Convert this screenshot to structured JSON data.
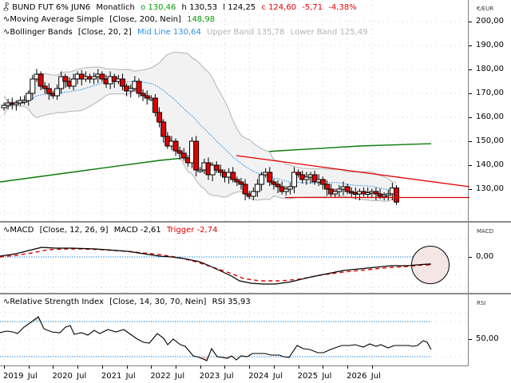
{
  "instrument": {
    "icon": "candlestick-icon",
    "name": "BUND FUT 6% JUN6",
    "interval": "Monatlich",
    "open_label": "o 130,46",
    "high_label": "h 130,53",
    "low_label": "l 124,25",
    "close_label": "c 124,60",
    "change_abs": "-5,71",
    "change_pct": "-4,38%"
  },
  "indicators": {
    "sma": {
      "icon": "indicator-wave-icon",
      "name": "Moving Average Simple",
      "params": "[Close, 200, Nein]",
      "value": "148,98"
    },
    "bollinger": {
      "icon": "indicator-wave-icon",
      "name": "Bollinger Bands",
      "params": "[Close, 20, 2]",
      "mid": "Mid Line 130,64",
      "upper": "Upper Band 135,78",
      "lower": "Lower Band 125,49"
    },
    "macd": {
      "icon": "indicator-wave-icon",
      "name": "MACD",
      "params": "[Close, 12, 26, 9]",
      "macd": "MACD -2,61",
      "trigger": "Trigger -2,74"
    },
    "rsi": {
      "icon": "indicator-wave-icon",
      "name": "Relative Strength Index",
      "params": "[Close, 14, 30, 70, Nein]",
      "value": "RSI 35,93"
    }
  },
  "axes": {
    "price_unit": "€/EUR",
    "price_ticks": [
      "200,00",
      "190,00",
      "180,00",
      "170,00",
      "160,00",
      "150,00",
      "140,00",
      "130,00"
    ],
    "macd_unit": "MACD",
    "macd_ticks": [
      "0,00"
    ],
    "rsi_unit": "RSI",
    "rsi_ticks": [
      "50,00"
    ],
    "x_ticks": [
      "2019",
      "Jul",
      "2020",
      "Jul",
      "2021",
      "Jul",
      "2022",
      "Jul",
      "2023",
      "Jul",
      "2024",
      "Jul",
      "2025",
      "Jul",
      "2026",
      "Jul"
    ]
  },
  "colors": {
    "up_candle": "#ffffff",
    "down_candle": "#e00000",
    "sma": "#0a7a0a",
    "bollinger_mid": "#1e88e5",
    "bollinger_band": "#bdbdbd",
    "bollinger_fill": "#f2f2f2",
    "trendline": "#e00000",
    "macd": "#000000",
    "trigger": "#e00000",
    "rsi": "#000000",
    "level_line": "#1e88e5",
    "circle_fill": "#f5e6e6",
    "open_value": "#0a9a0a",
    "close_value": "#e00000",
    "mid_line_text": "#2e90e0",
    "band_text": "#b4b4b4"
  },
  "chart_data": [
    {
      "type": "candlestick",
      "title": "BUND FUT 6% JUN6 Monatlich",
      "ylabel": "€/EUR",
      "ylim": [
        116,
        207
      ],
      "x_range": [
        "2019-01",
        "2026-12"
      ],
      "last": {
        "open": 130.46,
        "high": 130.53,
        "low": 124.25,
        "close": 124.6,
        "change": -5.71,
        "change_pct": -4.38
      },
      "candles_approx": [
        {
          "t": "2019-01",
          "o": 163.5,
          "h": 166,
          "l": 163,
          "c": 166
        },
        {
          "t": "2019-03",
          "o": 165,
          "h": 167,
          "l": 164,
          "c": 165.5
        },
        {
          "t": "2019-05",
          "o": 166,
          "h": 168,
          "l": 163.5,
          "c": 167
        },
        {
          "t": "2019-07",
          "o": 168,
          "h": 172,
          "l": 167,
          "c": 178
        },
        {
          "t": "2019-09",
          "o": 178,
          "h": 181,
          "l": 174,
          "c": 173
        },
        {
          "t": "2020-01",
          "o": 169,
          "h": 176,
          "l": 169,
          "c": 177
        },
        {
          "t": "2020-03",
          "o": 176,
          "h": 180,
          "l": 166,
          "c": 171
        },
        {
          "t": "2020-06",
          "o": 174,
          "h": 179,
          "l": 172,
          "c": 178
        },
        {
          "t": "2020-12",
          "o": 177,
          "h": 178,
          "l": 175,
          "c": 176
        },
        {
          "t": "2021-03",
          "o": 172,
          "h": 177,
          "l": 170,
          "c": 175
        },
        {
          "t": "2021-09",
          "o": 175,
          "h": 178,
          "l": 168,
          "c": 169
        },
        {
          "t": "2022-01",
          "o": 170,
          "h": 172,
          "l": 160,
          "c": 162
        },
        {
          "t": "2022-04",
          "o": 156,
          "h": 159,
          "l": 145,
          "c": 147
        },
        {
          "t": "2022-08",
          "o": 153,
          "h": 156,
          "l": 139,
          "c": 143
        },
        {
          "t": "2022-10",
          "o": 138,
          "h": 144,
          "l": 134,
          "c": 139
        },
        {
          "t": "2023-01",
          "o": 139,
          "h": 141,
          "l": 132,
          "c": 133
        },
        {
          "t": "2023-07",
          "o": 132,
          "h": 135,
          "l": 127,
          "c": 128
        },
        {
          "t": "2023-10",
          "o": 127,
          "h": 130,
          "l": 125,
          "c": 128
        },
        {
          "t": "2024-01",
          "o": 134,
          "h": 137,
          "l": 132,
          "c": 138
        },
        {
          "t": "2024-05",
          "o": 131,
          "h": 134,
          "l": 129,
          "c": 130
        },
        {
          "t": "2024-09",
          "o": 133,
          "h": 137,
          "l": 132,
          "c": 136
        },
        {
          "t": "2025-03",
          "o": 134,
          "h": 135,
          "l": 126,
          "c": 130
        },
        {
          "t": "2025-09",
          "o": 128,
          "h": 130,
          "l": 127,
          "c": 129
        },
        {
          "t": "2026-01",
          "o": 130.46,
          "h": 130.53,
          "l": 124.25,
          "c": 124.6
        }
      ],
      "overlays": {
        "sma200": {
          "start": 140,
          "end": 148.98
        },
        "bollinger": {
          "mid": 130.64,
          "upper": 135.78,
          "lower": 125.49
        },
        "trendline_resistance": {
          "from": [
            "2022-10",
            143.5
          ],
          "to": [
            "2026-12",
            131
          ]
        },
        "trendline_support": {
          "level": 126,
          "from": "2023-10"
        }
      }
    },
    {
      "type": "line",
      "title": "MACD [Close, 12, 26, 9]",
      "series": [
        {
          "name": "MACD",
          "last": -2.61
        },
        {
          "name": "Trigger",
          "last": -2.74
        }
      ],
      "yticks": [
        "0,00"
      ],
      "annotation": "circle around latest MACD/Trigger crossover"
    },
    {
      "type": "line",
      "title": "Relative Strength Index [Close, 14, 30, 70, Nein]",
      "series": [
        {
          "name": "RSI",
          "last": 35.93
        }
      ],
      "levels": [
        30,
        70
      ],
      "yticks": [
        "50,00"
      ]
    }
  ]
}
